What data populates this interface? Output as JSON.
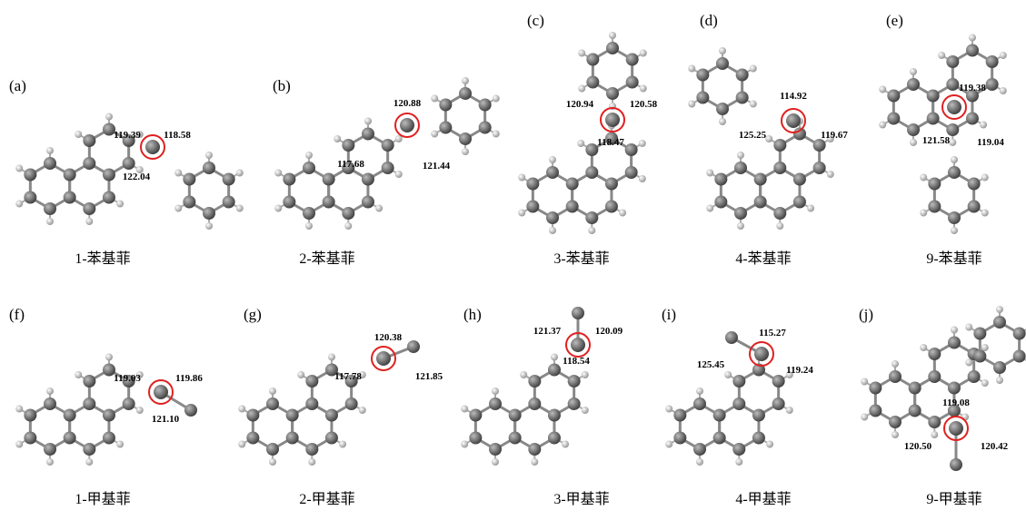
{
  "panels": [
    {
      "label": "(a)",
      "caption": "1-苯基菲",
      "angles": [
        "119.39",
        "118.58",
        "122.04"
      ]
    },
    {
      "label": "(b)",
      "caption": "2-苯基菲",
      "angles": [
        "120.88",
        "117.68",
        "121.44"
      ]
    },
    {
      "label": "(c)",
      "caption": "3-苯基菲",
      "angles": [
        "120.94",
        "120.58",
        "118.47"
      ]
    },
    {
      "label": "(d)",
      "caption": "4-苯基菲",
      "angles": [
        "114.92",
        "125.25",
        "119.67"
      ]
    },
    {
      "label": "(e)",
      "caption": "9-苯基菲",
      "angles": [
        "119.38",
        "121.58",
        "119.04"
      ]
    },
    {
      "label": "(f)",
      "caption": "1-甲基菲",
      "angles": [
        "119.03",
        "119.86",
        "121.10"
      ]
    },
    {
      "label": "(g)",
      "caption": "2-甲基菲",
      "angles": [
        "120.38",
        "117.78",
        "121.85"
      ]
    },
    {
      "label": "(h)",
      "caption": "3-甲基菲",
      "angles": [
        "121.37",
        "120.09",
        "118.54"
      ]
    },
    {
      "label": "(i)",
      "caption": "4-甲基菲",
      "angles": [
        "115.27",
        "125.45",
        "119.24"
      ]
    },
    {
      "label": "(j)",
      "caption": "9-甲基菲",
      "angles": [
        "119.08",
        "120.50",
        "120.42"
      ]
    }
  ]
}
